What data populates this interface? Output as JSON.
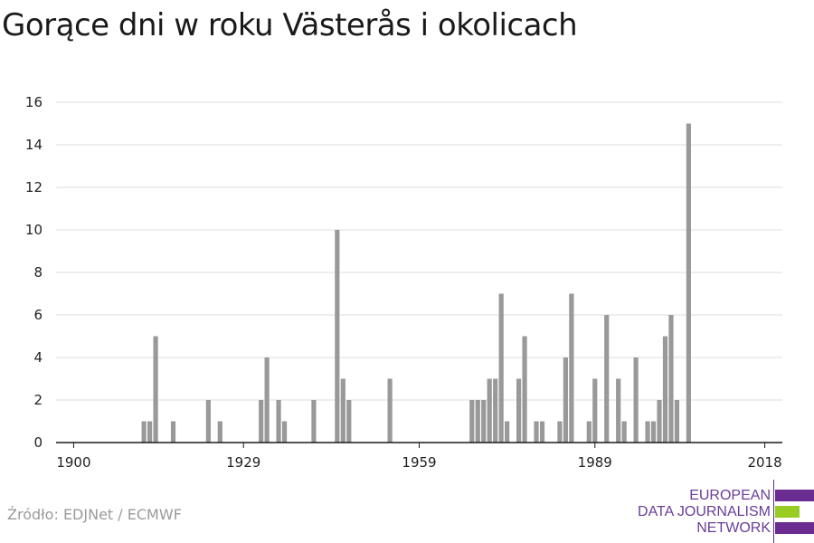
{
  "title": "Gorące dni w roku Västerås i okolicach",
  "source": "Źródło: EDJNet / ECMWF",
  "logo": {
    "line1": "EUROPEAN",
    "line2": "DATA JOURNALISM",
    "line3": "NETWORK"
  },
  "colors": {
    "bar": "#999999",
    "grid": "#dddddd",
    "axis": "#1a1a1a",
    "logo_purple": "#6a2c91",
    "logo_green": "#99cc22"
  },
  "chart_data": {
    "type": "bar",
    "title": "Gorące dni w roku Västerås i okolicach",
    "xlabel": "",
    "ylabel": "",
    "xlim": [
      1897,
      2021
    ],
    "ylim": [
      0,
      16
    ],
    "yticks": [
      0,
      2,
      4,
      6,
      8,
      10,
      12,
      14,
      16
    ],
    "xticks": [
      1900,
      1929,
      1959,
      1989,
      2018
    ],
    "grid": true,
    "x": [
      1911,
      1912,
      1913,
      1914,
      1917,
      1923,
      1925,
      1932,
      1933,
      1935,
      1936,
      1941,
      1945,
      1946,
      1947,
      1954,
      1968,
      1969,
      1970,
      1971,
      1972,
      1973,
      1974,
      1976,
      1977,
      1979,
      1980,
      1983,
      1984,
      1985,
      1988,
      1989,
      1991,
      1993,
      1994,
      1996,
      1998,
      1999,
      2000,
      2001,
      2002,
      2003,
      2005,
      2006,
      2009,
      2010,
      2012,
      2013,
      2014,
      2015,
      2016,
      2017,
      2018,
      2022,
      2023,
      2025,
      2030
    ],
    "values": [
      0,
      1,
      1,
      5,
      1,
      2,
      1,
      2,
      4,
      2,
      1,
      2,
      10,
      3,
      2,
      3,
      2,
      2,
      2,
      3,
      3,
      7,
      1,
      3,
      5,
      1,
      1,
      1,
      4,
      7,
      1,
      3,
      6,
      3,
      1,
      4,
      1,
      1,
      2,
      5,
      6,
      2,
      15,
      0,
      0,
      0,
      0,
      0,
      0,
      0,
      0,
      0,
      0,
      0,
      0,
      0,
      0
    ]
  }
}
